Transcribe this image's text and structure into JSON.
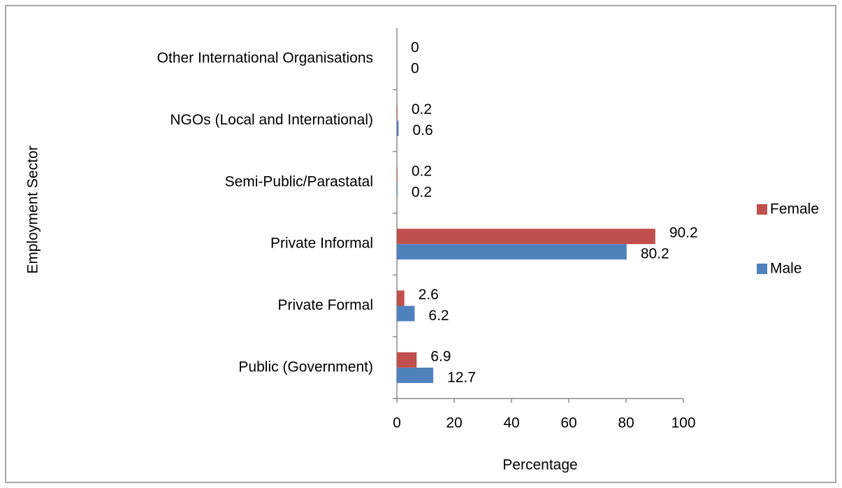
{
  "chart_data": {
    "type": "bar",
    "orientation": "horizontal",
    "categories": [
      "Public (Government)",
      "Private Formal",
      "Private Informal",
      "Semi-Public/Parastatal",
      "NGOs (Local and International)",
      "Other International Organisations"
    ],
    "series": [
      {
        "name": "Female",
        "color": "#c0504d",
        "values": [
          6.9,
          2.6,
          90.2,
          0.2,
          0.2,
          0
        ]
      },
      {
        "name": "Male",
        "color": "#4f81bd",
        "values": [
          12.7,
          6.2,
          80.2,
          0.2,
          0.6,
          0
        ]
      }
    ],
    "xlim": [
      0,
      100
    ],
    "xticks": [
      0,
      20,
      40,
      60,
      80,
      100
    ],
    "x_label": "Percentage",
    "y_label": "Employment Sector",
    "legend": "right"
  }
}
